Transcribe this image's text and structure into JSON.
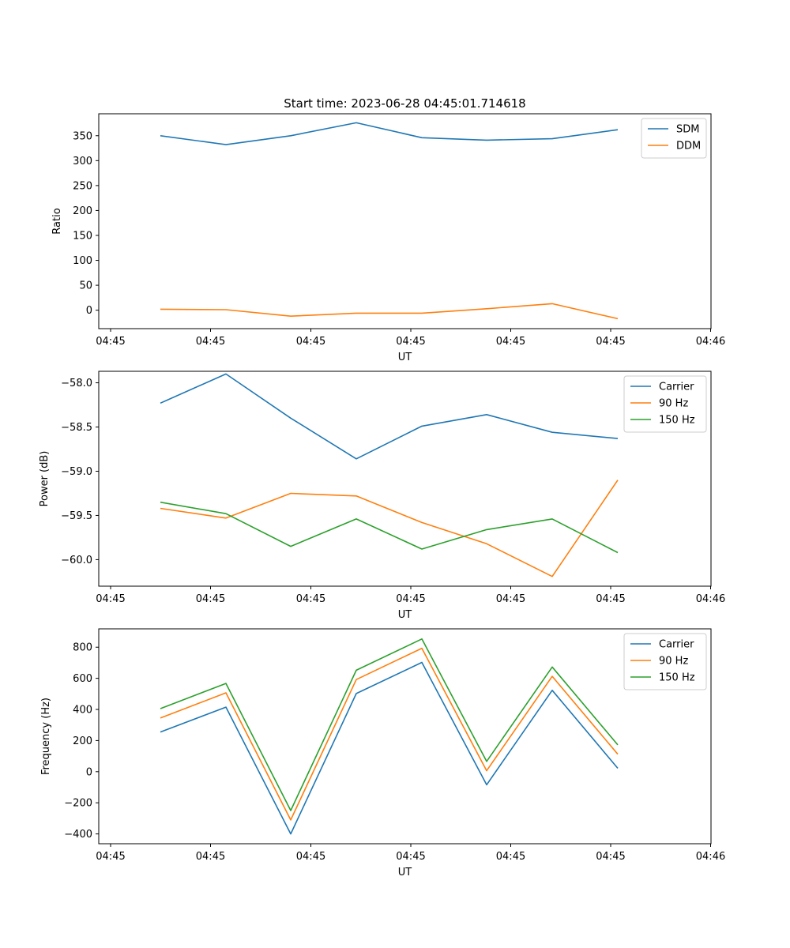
{
  "figure": {
    "title": "Start time: 2023-06-28 04:45:01.714618"
  },
  "colors": {
    "blue": "#1f77b4",
    "orange": "#ff7f0e",
    "green": "#2ca02c"
  },
  "chart_data": [
    {
      "type": "line",
      "title": "Start time: 2023-06-28 04:45:01.714618",
      "xlabel": "UT",
      "ylabel": "Ratio",
      "x_tick_labels": [
        "04:45",
        "04:45",
        "04:45",
        "04:45",
        "04:45",
        "04:45",
        "04:45",
        "04:46"
      ],
      "ylim": [
        -37,
        394
      ],
      "y_ticks": [
        0,
        50,
        100,
        150,
        200,
        250,
        300,
        350
      ],
      "y_tick_labels": [
        "0",
        "50",
        "100",
        "150",
        "200",
        "250",
        "300",
        "350"
      ],
      "legend_position": "top-right",
      "series": [
        {
          "name": "SDM",
          "color": "#1f77b4",
          "values": [
            350,
            332,
            350,
            376,
            346,
            341,
            344,
            362
          ]
        },
        {
          "name": "DDM",
          "color": "#ff7f0e",
          "values": [
            2,
            1,
            -12,
            -6,
            -6,
            3,
            13,
            -17
          ]
        }
      ]
    },
    {
      "type": "line",
      "xlabel": "UT",
      "ylabel": "Power (dB)",
      "x_tick_labels": [
        "04:45",
        "04:45",
        "04:45",
        "04:45",
        "04:45",
        "04:45",
        "04:45",
        "04:46"
      ],
      "ylim": [
        -60.3,
        -57.87
      ],
      "y_ticks": [
        -60.0,
        -59.5,
        -59.0,
        -58.5,
        -58.0
      ],
      "y_tick_labels": [
        "−60.0",
        "−59.5",
        "−59.0",
        "−58.5",
        "−58.0"
      ],
      "legend_position": "top-right",
      "series": [
        {
          "name": "Carrier",
          "color": "#1f77b4",
          "values": [
            -58.23,
            -57.9,
            -58.4,
            -58.86,
            -58.49,
            -58.36,
            -58.56,
            -58.63
          ]
        },
        {
          "name": "90 Hz",
          "color": "#ff7f0e",
          "values": [
            -59.42,
            -59.53,
            -59.25,
            -59.28,
            -59.58,
            -59.82,
            -60.19,
            -59.1
          ]
        },
        {
          "name": "150 Hz",
          "color": "#2ca02c",
          "values": [
            -59.35,
            -59.48,
            -59.85,
            -59.54,
            -59.88,
            -59.66,
            -59.54,
            -59.92
          ]
        }
      ]
    },
    {
      "type": "line",
      "xlabel": "UT",
      "ylabel": "Frequency (Hz)",
      "x_tick_labels": [
        "04:45",
        "04:45",
        "04:45",
        "04:45",
        "04:45",
        "04:45",
        "04:45",
        "04:46"
      ],
      "ylim": [
        -463,
        918
      ],
      "y_ticks": [
        -400,
        -200,
        0,
        200,
        400,
        600,
        800
      ],
      "y_tick_labels": [
        "−400",
        "−200",
        "0",
        "200",
        "400",
        "600",
        "800"
      ],
      "legend_position": "top-right",
      "series": [
        {
          "name": "Carrier",
          "color": "#1f77b4",
          "values": [
            255,
            415,
            -400,
            502,
            702,
            -84,
            523,
            22
          ]
        },
        {
          "name": "90 Hz",
          "color": "#ff7f0e",
          "values": [
            345,
            507,
            -310,
            592,
            793,
            6,
            613,
            112
          ]
        },
        {
          "name": "150 Hz",
          "color": "#2ca02c",
          "values": [
            405,
            567,
            -250,
            652,
            853,
            66,
            673,
            172
          ]
        }
      ]
    }
  ]
}
